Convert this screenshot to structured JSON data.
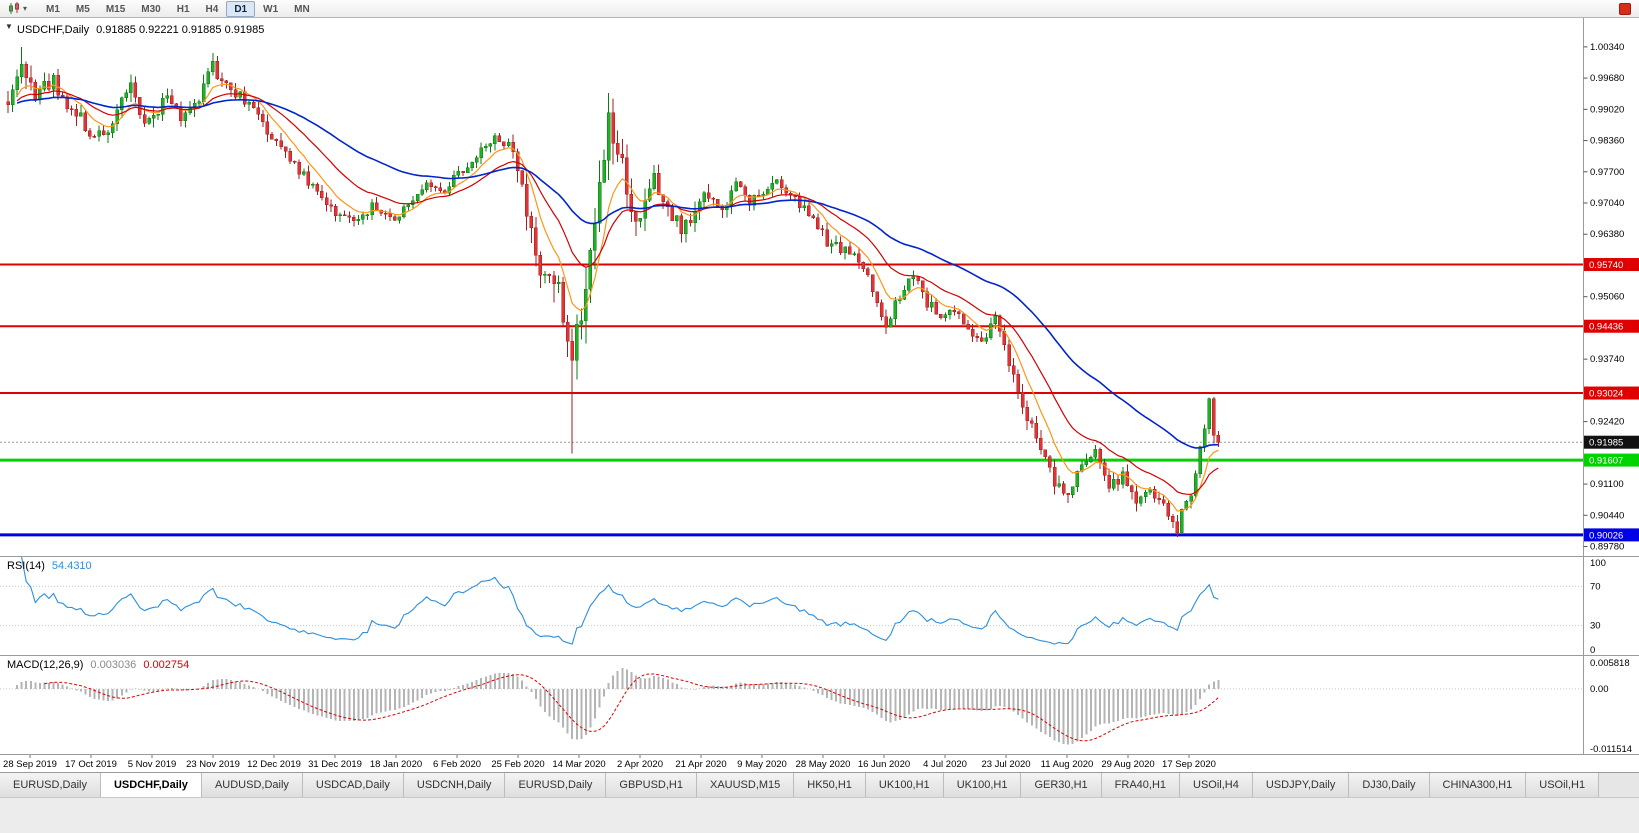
{
  "toolbar": {
    "timeframes": [
      "M1",
      "M5",
      "M15",
      "M30",
      "H1",
      "H4",
      "D1",
      "W1",
      "MN"
    ],
    "active_timeframe": "D1",
    "icons": {
      "chart_type": "candlestick-chart",
      "dropdown": "▾",
      "collapse": "▼",
      "app_badge": "mql5-red-badge"
    }
  },
  "chart_data": {
    "type": "candlestick",
    "symbol_timeframe": "USDCHF,Daily",
    "ohlc_text": "0.91885 0.92221 0.91885 0.91985",
    "ohlc": {
      "open": 0.91885,
      "high": 0.92221,
      "low": 0.91885,
      "close": 0.91985
    },
    "current_price": 0.91985,
    "price_label": "0.91985",
    "y_axis": {
      "max": 1.0095,
      "min": 0.8958,
      "ticks": [
        1.0034,
        0.9968,
        0.9902,
        0.9836,
        0.977,
        0.9704,
        0.9638,
        0.9506,
        0.9374,
        0.9242,
        0.911,
        0.9044,
        0.8978
      ]
    },
    "x_axis": {
      "labels": [
        "28 Sep 2019",
        "17 Oct 2019",
        "5 Nov 2019",
        "23 Nov 2019",
        "12 Dec 2019",
        "31 Dec 2019",
        "18 Jan 2020",
        "6 Feb 2020",
        "25 Feb 2020",
        "14 Mar 2020",
        "2 Apr 2020",
        "21 Apr 2020",
        "9 May 2020",
        "28 May 2020",
        "16 Jun 2020",
        "4 Jul 2020",
        "23 Jul 2020",
        "11 Aug 2020",
        "29 Aug 2020",
        "17 Sep 2020"
      ]
    },
    "horizontal_lines": [
      {
        "value": 0.9574,
        "label": "0.95740",
        "color": "#e00000",
        "width": 2
      },
      {
        "value": 0.94436,
        "label": "0.94436",
        "color": "#e00000",
        "width": 2
      },
      {
        "value": 0.93024,
        "label": "0.93024",
        "color": "#e00000",
        "width": 2
      },
      {
        "value": 0.91607,
        "label": "0.91607",
        "color": "#00d400",
        "width": 3
      },
      {
        "value": 0.90026,
        "label": "0.90026",
        "color": "#0000e8",
        "width": 3
      }
    ],
    "bar_count": 267,
    "price_anchors": [
      [
        0,
        0.9925,
        0.0035
      ],
      [
        3,
        0.999,
        0.0038
      ],
      [
        6,
        0.994,
        0.0034
      ],
      [
        10,
        0.9965,
        0.003
      ],
      [
        14,
        0.99,
        0.003
      ],
      [
        18,
        0.9858,
        0.0028
      ],
      [
        21,
        0.9845,
        0.0026
      ],
      [
        24,
        0.9898,
        0.0026
      ],
      [
        27,
        0.995,
        0.0026
      ],
      [
        30,
        0.9868,
        0.0028
      ],
      [
        32,
        0.989,
        0.0026
      ],
      [
        35,
        0.9935,
        0.0026
      ],
      [
        38,
        0.988,
        0.0024
      ],
      [
        42,
        0.993,
        0.0026
      ],
      [
        45,
        0.999,
        0.0028
      ],
      [
        48,
        0.9958,
        0.0024
      ],
      [
        52,
        0.992,
        0.0022
      ],
      [
        55,
        0.9885,
        0.0022
      ],
      [
        58,
        0.9848,
        0.0022
      ],
      [
        62,
        0.98,
        0.002
      ],
      [
        66,
        0.9745,
        0.002
      ],
      [
        72,
        0.9683,
        0.0018
      ],
      [
        76,
        0.9668,
        0.0016
      ],
      [
        80,
        0.9695,
        0.0016
      ],
      [
        85,
        0.9672,
        0.0016
      ],
      [
        89,
        0.9715,
        0.0016
      ],
      [
        93,
        0.9745,
        0.0016
      ],
      [
        96,
        0.9722,
        0.0016
      ],
      [
        99,
        0.9768,
        0.0018
      ],
      [
        103,
        0.98,
        0.0018
      ],
      [
        107,
        0.9848,
        0.002
      ],
      [
        110,
        0.982,
        0.0022
      ],
      [
        112,
        0.9775,
        0.0032
      ],
      [
        114,
        0.97,
        0.0046
      ],
      [
        116,
        0.9595,
        0.0062
      ],
      [
        118,
        0.9528,
        0.006
      ],
      [
        120,
        0.956,
        0.0052
      ],
      [
        122,
        0.9455,
        0.006
      ],
      [
        124,
        0.939,
        0.0058
      ],
      [
        126,
        0.949,
        0.006
      ],
      [
        128,
        0.9615,
        0.0065
      ],
      [
        130,
        0.9735,
        0.0068
      ],
      [
        132,
        0.988,
        0.0062
      ],
      [
        134,
        0.9835,
        0.0055
      ],
      [
        136,
        0.9735,
        0.0046
      ],
      [
        138,
        0.9645,
        0.004
      ],
      [
        140,
        0.969,
        0.0036
      ],
      [
        142,
        0.975,
        0.0034
      ],
      [
        145,
        0.97,
        0.003
      ],
      [
        148,
        0.965,
        0.0028
      ],
      [
        151,
        0.969,
        0.0026
      ],
      [
        154,
        0.9725,
        0.0024
      ],
      [
        157,
        0.9688,
        0.0024
      ],
      [
        160,
        0.974,
        0.0024
      ],
      [
        163,
        0.9705,
        0.0022
      ],
      [
        166,
        0.9718,
        0.0022
      ],
      [
        169,
        0.9748,
        0.0022
      ],
      [
        172,
        0.9718,
        0.002
      ],
      [
        176,
        0.9678,
        0.002
      ],
      [
        180,
        0.9622,
        0.002
      ],
      [
        184,
        0.9605,
        0.0018
      ],
      [
        188,
        0.9572,
        0.0018
      ],
      [
        191,
        0.9498,
        0.0022
      ],
      [
        193,
        0.9448,
        0.0022
      ],
      [
        196,
        0.9505,
        0.002
      ],
      [
        199,
        0.9548,
        0.002
      ],
      [
        202,
        0.9492,
        0.0018
      ],
      [
        205,
        0.9468,
        0.0018
      ],
      [
        208,
        0.9478,
        0.0018
      ],
      [
        211,
        0.9442,
        0.0018
      ],
      [
        214,
        0.9415,
        0.0018
      ],
      [
        217,
        0.9458,
        0.0018
      ],
      [
        219,
        0.9398,
        0.002
      ],
      [
        221,
        0.933,
        0.0024
      ],
      [
        224,
        0.9252,
        0.0026
      ],
      [
        227,
        0.9182,
        0.0026
      ],
      [
        230,
        0.9122,
        0.0028
      ],
      [
        233,
        0.9085,
        0.0026
      ],
      [
        236,
        0.9148,
        0.0024
      ],
      [
        239,
        0.9172,
        0.0022
      ],
      [
        242,
        0.9098,
        0.0022
      ],
      [
        245,
        0.9128,
        0.002
      ],
      [
        248,
        0.9062,
        0.0022
      ],
      [
        251,
        0.9098,
        0.002
      ],
      [
        254,
        0.9058,
        0.002
      ],
      [
        257,
        0.9018,
        0.0022
      ],
      [
        259,
        0.9072,
        0.002
      ],
      [
        261,
        0.912,
        0.0022
      ],
      [
        263,
        0.924,
        0.0026
      ],
      [
        264,
        0.9285,
        0.0024
      ],
      [
        265,
        0.921,
        0.0024
      ],
      [
        266,
        0.91985,
        0.002
      ]
    ],
    "wick_overrides": {
      "high": {
        "3": 1.0034,
        "264": 0.9293,
        "266": 0.92221
      },
      "low": {
        "124": 0.9175,
        "257": 0.8998,
        "266": 0.91885
      }
    },
    "moving_averages": [
      {
        "period": 8,
        "color": "#ff9517"
      },
      {
        "period": 20,
        "color": "#d40000"
      },
      {
        "period": 50,
        "color": "#0025cc"
      }
    ],
    "candle_colors": {
      "up_fill": "#1fb025",
      "up_stroke": "#0e7a12",
      "down_fill": "#e23434",
      "down_stroke": "#a51e1e"
    }
  },
  "indicators": {
    "rsi": {
      "label": "RSI(14)",
      "value": "54.4310",
      "color": "#2a8fe0",
      "levels": [
        100,
        70,
        30,
        0
      ]
    },
    "macd": {
      "label": "MACD(12,26,9)",
      "value_main": "0.003036",
      "value_signal": "0.002754",
      "hist_color": "#b4b4b4",
      "signal_color": "#e00000",
      "axis": {
        "max": 0.005818,
        "min": -0.011514,
        "labels": [
          "0.005818",
          "0.00",
          "-0.011514"
        ]
      }
    }
  },
  "tabs": {
    "active_index": 1,
    "items": [
      "EURUSD,Daily",
      "USDCHF,Daily",
      "AUDUSD,Daily",
      "USDCAD,Daily",
      "USDCNH,Daily",
      "EURUSD,Daily",
      "GBPUSD,H1",
      "XAUUSD,M15",
      "HK50,H1",
      "UK100,H1",
      "UK100,H1",
      "GER30,H1",
      "FRA40,H1",
      "USOil,H4",
      "USDJPY,Daily",
      "DJ30,Daily",
      "CHINA300,H1",
      "USOil,H1"
    ]
  }
}
